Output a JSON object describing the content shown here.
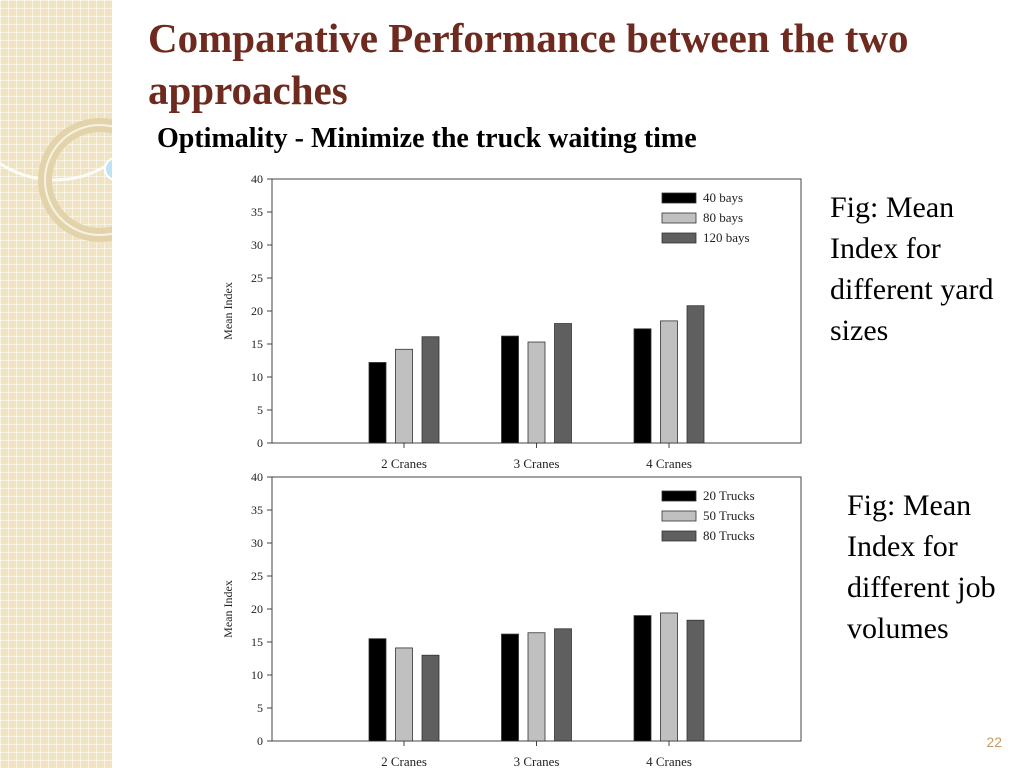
{
  "slide": {
    "title": "Comparative Performance between the two approaches",
    "subtitle": "Optimality - Minimize the truck waiting time",
    "page_number": "22"
  },
  "captions": [
    "Fig: Mean Index for different yard sizes",
    "Fig: Mean Index for different job volumes"
  ],
  "colors": {
    "title": "#6e2a1e",
    "sidebar": "#efe3c2",
    "page_number": "#c79a63"
  },
  "chart_data": [
    {
      "type": "bar",
      "title": "",
      "xlabel": "",
      "ylabel": "Mean Index",
      "ylim": [
        0,
        40
      ],
      "yticks": [
        0,
        5,
        10,
        15,
        20,
        25,
        30,
        35,
        40
      ],
      "categories": [
        "2 Cranes",
        "3 Cranes",
        "4 Cranes"
      ],
      "legend_position": "top-right",
      "series": [
        {
          "name": "40 bays",
          "color": "#000000",
          "values": [
            12.2,
            16.2,
            17.3
          ]
        },
        {
          "name": "80 bays",
          "color": "#c0c0c0",
          "values": [
            14.2,
            15.3,
            18.5
          ]
        },
        {
          "name": "120 bays",
          "color": "#5f5f5f",
          "values": [
            16.1,
            18.1,
            20.8
          ]
        }
      ]
    },
    {
      "type": "bar",
      "title": "",
      "xlabel": "",
      "ylabel": "Mean Index",
      "ylim": [
        0,
        40
      ],
      "yticks": [
        0,
        5,
        10,
        15,
        20,
        25,
        30,
        35,
        40
      ],
      "categories": [
        "2 Cranes",
        "3 Cranes",
        "4 Cranes"
      ],
      "legend_position": "top-right",
      "series": [
        {
          "name": "20 Trucks",
          "color": "#000000",
          "values": [
            15.5,
            16.2,
            19.0
          ]
        },
        {
          "name": "50 Trucks",
          "color": "#c0c0c0",
          "values": [
            14.1,
            16.4,
            19.4
          ]
        },
        {
          "name": "80 Trucks",
          "color": "#5f5f5f",
          "values": [
            13.0,
            17.0,
            18.3
          ]
        }
      ]
    }
  ]
}
